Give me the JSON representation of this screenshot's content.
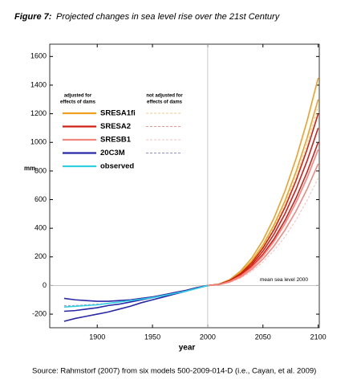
{
  "figure_label": "Figure 7:",
  "title": "Projected changes in sea level rise over the 21st Century",
  "source": "Source: Rahmstorf (2007) from six models  500-2009-014-D (i.e., Cayan, et al. 2009)",
  "chart_data": {
    "type": "line",
    "xlabel": "year",
    "ylabel": "mm",
    "xlim": [
      1857,
      2101
    ],
    "ylim": [
      -295,
      1686
    ],
    "xticks": [
      1900,
      1950,
      2000,
      2050,
      2100
    ],
    "yticks": [
      -200,
      0,
      200,
      400,
      600,
      800,
      1000,
      1200,
      1400,
      1600
    ],
    "annotation": "mean sea level 2000",
    "legend_headers": [
      [
        "adjusted for",
        "effects of dams"
      ],
      [
        "not adjusted for",
        "effects of dams"
      ]
    ],
    "series": [
      {
        "name": "SRESA1fi",
        "color": "#f0a020",
        "dashed_color": "#f5c890",
        "x": [
          2000,
          2010,
          2020,
          2030,
          2040,
          2050,
          2060,
          2070,
          2080,
          2090,
          2100
        ],
        "runs": [
          [
            0,
            9,
            42,
            103,
            193,
            316,
            471,
            661,
            887,
            1150,
            1450
          ],
          [
            0,
            8,
            38,
            92,
            173,
            283,
            423,
            593,
            796,
            1031,
            1300
          ]
        ],
        "unadjusted_runs": [
          [
            0,
            8,
            36,
            89,
            166,
            273,
            406,
            570,
            765,
            991,
            1250
          ]
        ]
      },
      {
        "name": "SRESA2",
        "color": "#d02018",
        "dashed_color": "#e89890",
        "x": [
          2000,
          2010,
          2020,
          2030,
          2040,
          2050,
          2060,
          2070,
          2080,
          2090,
          2100
        ],
        "runs": [
          [
            0,
            8,
            35,
            85,
            160,
            262,
            390,
            547,
            734,
            952,
            1200
          ],
          [
            0,
            7,
            32,
            78,
            146,
            240,
            358,
            502,
            673,
            872,
            1100
          ],
          [
            0,
            6,
            29,
            71,
            133,
            218,
            325,
            456,
            612,
            793,
            1000
          ]
        ],
        "unadjusted_runs": [
          [
            0,
            6,
            28,
            67,
            126,
            207,
            309,
            433,
            581,
            753,
            950
          ]
        ]
      },
      {
        "name": "SRESB1",
        "color": "#f08880",
        "dashed_color": "#f4c0bc",
        "x": [
          2000,
          2010,
          2020,
          2030,
          2040,
          2050,
          2060,
          2070,
          2080,
          2090,
          2100
        ],
        "runs": [
          [
            0,
            6,
            28,
            67,
            126,
            207,
            309,
            433,
            581,
            753,
            950
          ],
          [
            0,
            5,
            25,
            60,
            113,
            185,
            276,
            388,
            520,
            674,
            850
          ]
        ],
        "unadjusted_runs": [
          [
            0,
            5,
            22,
            53,
            100,
            164,
            244,
            342,
            459,
            595,
            750
          ]
        ]
      },
      {
        "name": "20C3M",
        "color": "#2828a8",
        "dashed_color": "#9090c8",
        "x": [
          1870,
          1880,
          1890,
          1900,
          1910,
          1920,
          1930,
          1940,
          1950,
          1960,
          1970,
          1980,
          1990,
          2000
        ],
        "runs": [
          [
            -250,
            -230,
            -215,
            -200,
            -185,
            -165,
            -145,
            -120,
            -100,
            -80,
            -60,
            -40,
            -20,
            0
          ],
          [
            -180,
            -175,
            -165,
            -155,
            -140,
            -130,
            -115,
            -100,
            -85,
            -70,
            -50,
            -35,
            -15,
            0
          ],
          [
            -90,
            -100,
            -105,
            -110,
            -110,
            -105,
            -100,
            -90,
            -80,
            -65,
            -50,
            -35,
            -15,
            0
          ]
        ],
        "unadjusted_runs": [
          [
            -140,
            -140,
            -135,
            -130,
            -125,
            -115,
            -105,
            -95,
            -80,
            -65,
            -50,
            -35,
            -15,
            0
          ]
        ]
      },
      {
        "name": "observed",
        "color": "#30d0e0",
        "x": [
          1870,
          1880,
          1890,
          1900,
          1910,
          1920,
          1930,
          1940,
          1950,
          1960,
          1970,
          1980,
          1990,
          2000
        ],
        "runs": [
          [
            -150,
            -145,
            -140,
            -135,
            -125,
            -115,
            -105,
            -95,
            -85,
            -70,
            -55,
            -40,
            -20,
            0
          ]
        ]
      }
    ]
  }
}
